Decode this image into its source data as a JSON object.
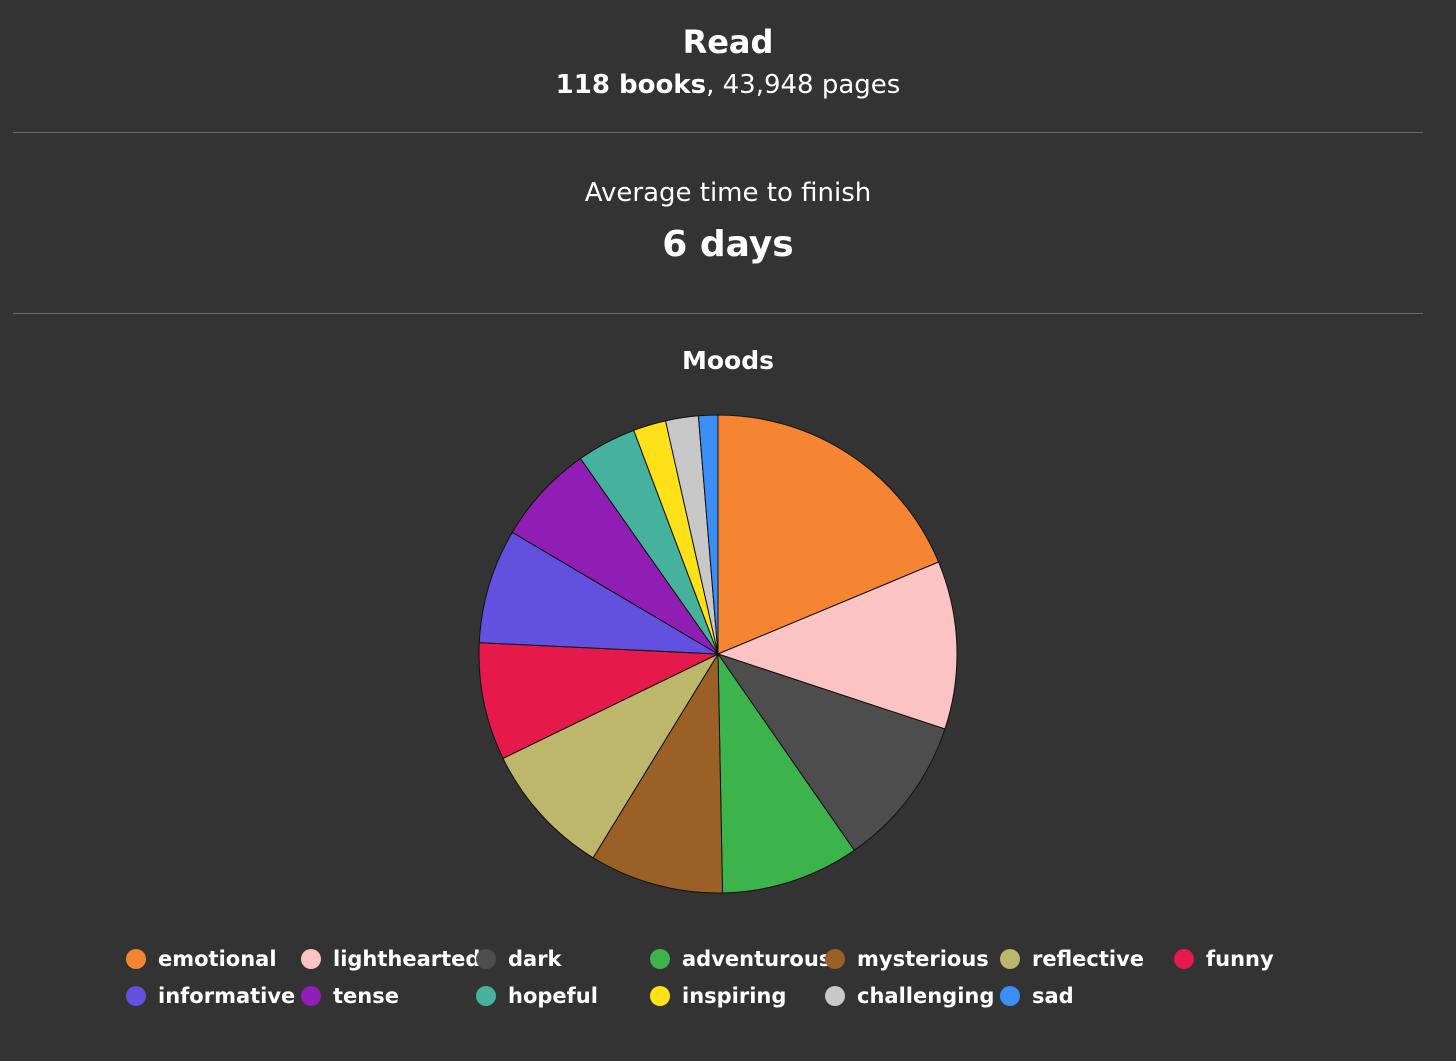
{
  "header": {
    "title": "Read",
    "books": "118 books",
    "separator": ",",
    "pages": "43,948 pages"
  },
  "average": {
    "label": "Average time to finish",
    "value": "6 days"
  },
  "chart_data": {
    "type": "pie",
    "title": "Moods",
    "legend_position": "bottom",
    "slices": [
      {
        "label": "emotional",
        "value": 18.6,
        "color": "#f58533"
      },
      {
        "label": "lighthearted",
        "value": 11.3,
        "color": "#fbc3c3"
      },
      {
        "label": "dark",
        "value": 10.2,
        "color": "#4d4d4d"
      },
      {
        "label": "adventurous",
        "value": 9.3,
        "color": "#3cb44b"
      },
      {
        "label": "mysterious",
        "value": 9.0,
        "color": "#9b6025"
      },
      {
        "label": "reflective",
        "value": 9.0,
        "color": "#bdb76b"
      },
      {
        "label": "funny",
        "value": 7.9,
        "color": "#e6194b"
      },
      {
        "label": "informative",
        "value": 7.7,
        "color": "#6251de"
      },
      {
        "label": "tense",
        "value": 6.7,
        "color": "#911eb4"
      },
      {
        "label": "hopeful",
        "value": 4.0,
        "color": "#46b29d"
      },
      {
        "label": "inspiring",
        "value": 2.2,
        "color": "#ffe119"
      },
      {
        "label": "challenging",
        "value": 2.2,
        "color": "#c8c8c8"
      },
      {
        "label": "sad",
        "value": 1.3,
        "color": "#3a8ef6"
      }
    ]
  }
}
